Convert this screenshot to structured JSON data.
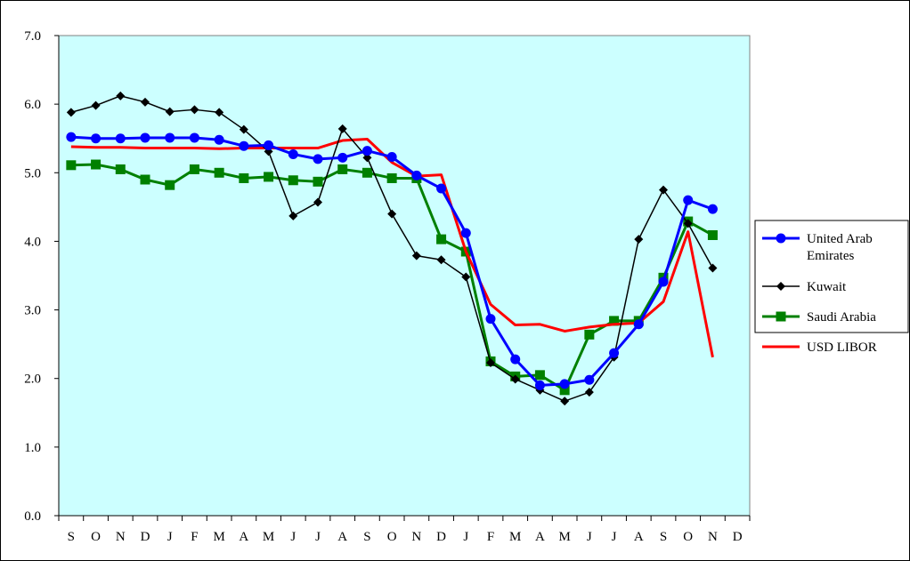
{
  "chart_data": {
    "type": "line",
    "title": "",
    "xlabel": "",
    "ylabel": "",
    "categories": [
      "S",
      "O",
      "N",
      "D",
      "J",
      "F",
      "M",
      "A",
      "M",
      "J",
      "J",
      "A",
      "S",
      "O",
      "N",
      "D",
      "J",
      "F",
      "M",
      "A",
      "M",
      "J",
      "J",
      "A",
      "S",
      "O",
      "N",
      "D"
    ],
    "ylim": [
      0,
      7
    ],
    "yticks": [
      "0.0",
      "1.0",
      "2.0",
      "3.0",
      "4.0",
      "5.0",
      "6.0",
      "7.0"
    ],
    "grid": false,
    "plot_background": "#CCFFFF",
    "legend": {
      "placement": "right"
    },
    "series": [
      {
        "name": "United Arab Emirates",
        "legend_lines": [
          "United Arab",
          "Emirates"
        ],
        "color": "#0000FF",
        "marker": "circle",
        "values": [
          5.52,
          5.5,
          5.5,
          5.51,
          5.51,
          5.51,
          5.48,
          5.39,
          5.4,
          5.27,
          5.2,
          5.22,
          5.32,
          5.23,
          4.96,
          4.77,
          4.12,
          2.87,
          2.28,
          1.9,
          1.92,
          1.98,
          2.37,
          2.79,
          3.41,
          4.6,
          4.47,
          null
        ]
      },
      {
        "name": "Kuwait",
        "legend_lines": [
          "Kuwait"
        ],
        "color": "#000000",
        "marker": "diamond",
        "values": [
          5.88,
          5.98,
          6.12,
          6.03,
          5.89,
          5.92,
          5.88,
          5.63,
          5.31,
          4.37,
          4.57,
          5.64,
          5.22,
          4.4,
          3.79,
          3.73,
          3.48,
          2.23,
          1.99,
          1.83,
          1.67,
          1.8,
          2.31,
          4.03,
          4.75,
          4.26,
          3.61,
          null
        ]
      },
      {
        "name": "Saudi Arabia",
        "legend_lines": [
          "Saudi Arabia"
        ],
        "color": "#008000",
        "marker": "square",
        "values": [
          5.11,
          5.12,
          5.05,
          4.9,
          4.82,
          5.05,
          5.0,
          4.92,
          4.94,
          4.89,
          4.87,
          5.05,
          5.0,
          4.92,
          4.92,
          4.03,
          3.85,
          2.25,
          2.03,
          2.05,
          1.83,
          2.64,
          2.84,
          2.84,
          3.47,
          4.29,
          4.09,
          null
        ]
      },
      {
        "name": "USD LIBOR",
        "legend_lines": [
          "USD LIBOR"
        ],
        "color": "#FF0000",
        "marker": "none",
        "values": [
          5.38,
          5.37,
          5.37,
          5.36,
          5.36,
          5.36,
          5.35,
          5.36,
          5.36,
          5.36,
          5.36,
          5.47,
          5.49,
          5.15,
          4.95,
          4.97,
          3.85,
          3.08,
          2.78,
          2.79,
          2.69,
          2.75,
          2.79,
          2.81,
          3.12,
          4.14,
          2.31,
          null
        ]
      }
    ]
  }
}
